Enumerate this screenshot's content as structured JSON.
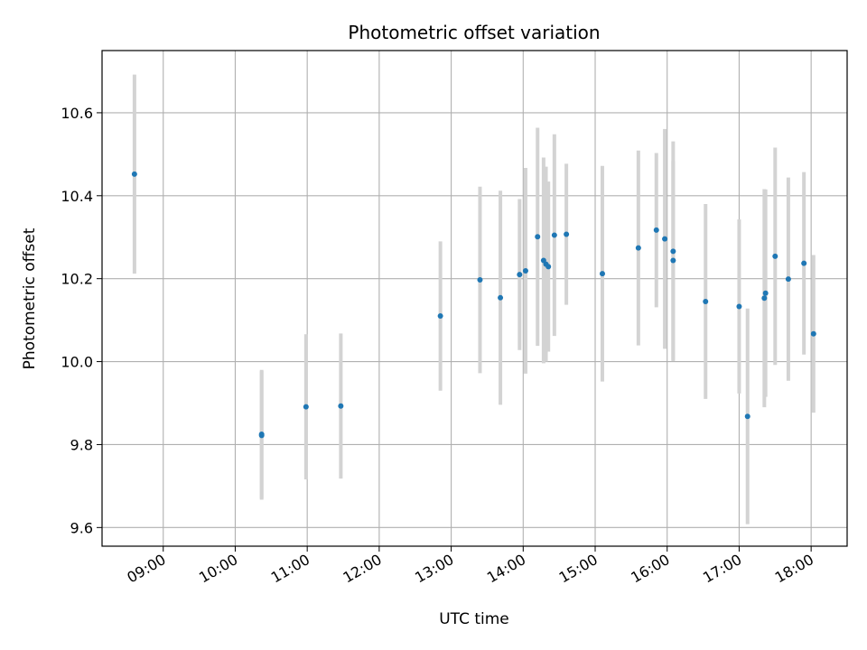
{
  "chart_data": {
    "type": "scatter",
    "title": "Photometric offset variation",
    "xlabel": "UTC time",
    "ylabel": "Photometric offset",
    "x_unit": "UTC time (HH:MM)",
    "xlim": [
      "08:09",
      "18:30"
    ],
    "ylim": [
      9.555,
      10.75
    ],
    "grid": true,
    "x_ticks": [
      "09:00",
      "10:00",
      "11:00",
      "12:00",
      "13:00",
      "14:00",
      "15:00",
      "16:00",
      "17:00",
      "18:00"
    ],
    "y_ticks": [
      "9.6",
      "9.8",
      "10.0",
      "10.2",
      "10.4",
      "10.6"
    ],
    "colors": {
      "points": "#1f77b4",
      "errorbars": "#d3d3d3",
      "grid": "#b0b0b0"
    },
    "points": [
      {
        "x": "08:36",
        "y": 10.452,
        "err": 0.24
      },
      {
        "x": "10:22",
        "y": 9.825,
        "err": 0.155
      },
      {
        "x": "10:22",
        "y": 9.822,
        "err": 0.155
      },
      {
        "x": "10:59",
        "y": 9.891,
        "err": 0.175
      },
      {
        "x": "11:28",
        "y": 9.893,
        "err": 0.175
      },
      {
        "x": "12:51",
        "y": 10.11,
        "err": 0.18
      },
      {
        "x": "13:24",
        "y": 10.197,
        "err": 0.225
      },
      {
        "x": "13:41",
        "y": 10.154,
        "err": 0.258
      },
      {
        "x": "13:57",
        "y": 10.21,
        "err": 0.182
      },
      {
        "x": "14:02",
        "y": 10.219,
        "err": 0.248
      },
      {
        "x": "14:12",
        "y": 10.301,
        "err": 0.263
      },
      {
        "x": "14:17",
        "y": 10.244,
        "err": 0.248
      },
      {
        "x": "14:19",
        "y": 10.235,
        "err": 0.235
      },
      {
        "x": "14:21",
        "y": 10.229,
        "err": 0.205
      },
      {
        "x": "14:26",
        "y": 10.305,
        "err": 0.243
      },
      {
        "x": "14:36",
        "y": 10.307,
        "err": 0.17
      },
      {
        "x": "15:06",
        "y": 10.212,
        "err": 0.26
      },
      {
        "x": "15:36",
        "y": 10.274,
        "err": 0.235
      },
      {
        "x": "15:51",
        "y": 10.317,
        "err": 0.186
      },
      {
        "x": "15:58",
        "y": 10.296,
        "err": 0.265
      },
      {
        "x": "16:05",
        "y": 10.266,
        "err": 0.265
      },
      {
        "x": "16:05",
        "y": 10.244,
        "err": 0.24
      },
      {
        "x": "16:32",
        "y": 10.145,
        "err": 0.235
      },
      {
        "x": "17:00",
        "y": 10.133,
        "err": 0.21
      },
      {
        "x": "17:07",
        "y": 9.868,
        "err": 0.26
      },
      {
        "x": "17:21",
        "y": 10.153,
        "err": 0.263
      },
      {
        "x": "17:22",
        "y": 10.165,
        "err": 0.25
      },
      {
        "x": "17:30",
        "y": 10.254,
        "err": 0.262
      },
      {
        "x": "17:41",
        "y": 10.199,
        "err": 0.245
      },
      {
        "x": "17:54",
        "y": 10.237,
        "err": 0.22
      },
      {
        "x": "18:02",
        "y": 10.067,
        "err": 0.19
      }
    ]
  }
}
